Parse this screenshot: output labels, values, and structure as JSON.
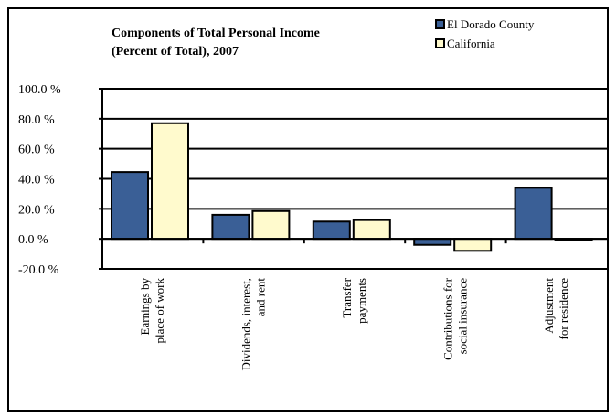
{
  "chart_data": {
    "type": "bar",
    "title_lines": [
      "Components of Total Personal Income",
      "(Percent of Total), 2007"
    ],
    "categories": [
      [
        "Earnings by",
        "place of work"
      ],
      [
        "Dividends, interest,",
        "and rent"
      ],
      [
        "Transfer",
        "payments"
      ],
      [
        "Contributions for",
        "social insurance"
      ],
      [
        "Adjustment",
        "for residence"
      ]
    ],
    "series": [
      {
        "name": "El Dorado County",
        "color": "#3a5f96",
        "values": [
          44.5,
          16.0,
          11.5,
          -4.0,
          34.0
        ]
      },
      {
        "name": "California",
        "color": "#fffacd",
        "values": [
          77.0,
          18.5,
          12.5,
          -8.0,
          -0.5
        ]
      }
    ],
    "y_ticks": [
      "100.0 %",
      "80.0 %",
      "60.0 %",
      "40.0 %",
      "20.0 %",
      "0.0 %",
      "-20.0 %"
    ],
    "ylim": [
      -20,
      100
    ],
    "grid": true,
    "legend_position": "top-right"
  }
}
